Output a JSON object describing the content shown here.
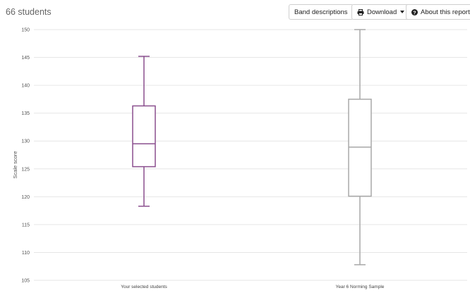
{
  "header": {
    "student_count": "66 students",
    "band_descriptions_label": "Band descriptions",
    "download_label": "Download",
    "about_label": "About this report"
  },
  "colors": {
    "selected_series": "#8a4f8e",
    "norming_series": "#a8a8a8",
    "gridline": "#e6e6e6"
  },
  "chart_data": {
    "type": "boxplot",
    "ylabel": "Scale score",
    "xlabel": "",
    "ylim": [
      105,
      150
    ],
    "yticks": [
      "150",
      "145",
      "140",
      "135",
      "130",
      "125",
      "120",
      "115",
      "110",
      "105"
    ],
    "grid": true,
    "categories": [
      "Your selected students",
      "Year 6 Norming Sample"
    ],
    "series": [
      {
        "name": "Your selected students",
        "min": 118.3,
        "q1": 125.4,
        "median": 129.5,
        "q3": 136.3,
        "max": 145.2
      },
      {
        "name": "Year 6 Norming Sample",
        "min": 107.8,
        "q1": 120.1,
        "median": 128.9,
        "q3": 137.5,
        "max": 150.0
      }
    ]
  }
}
